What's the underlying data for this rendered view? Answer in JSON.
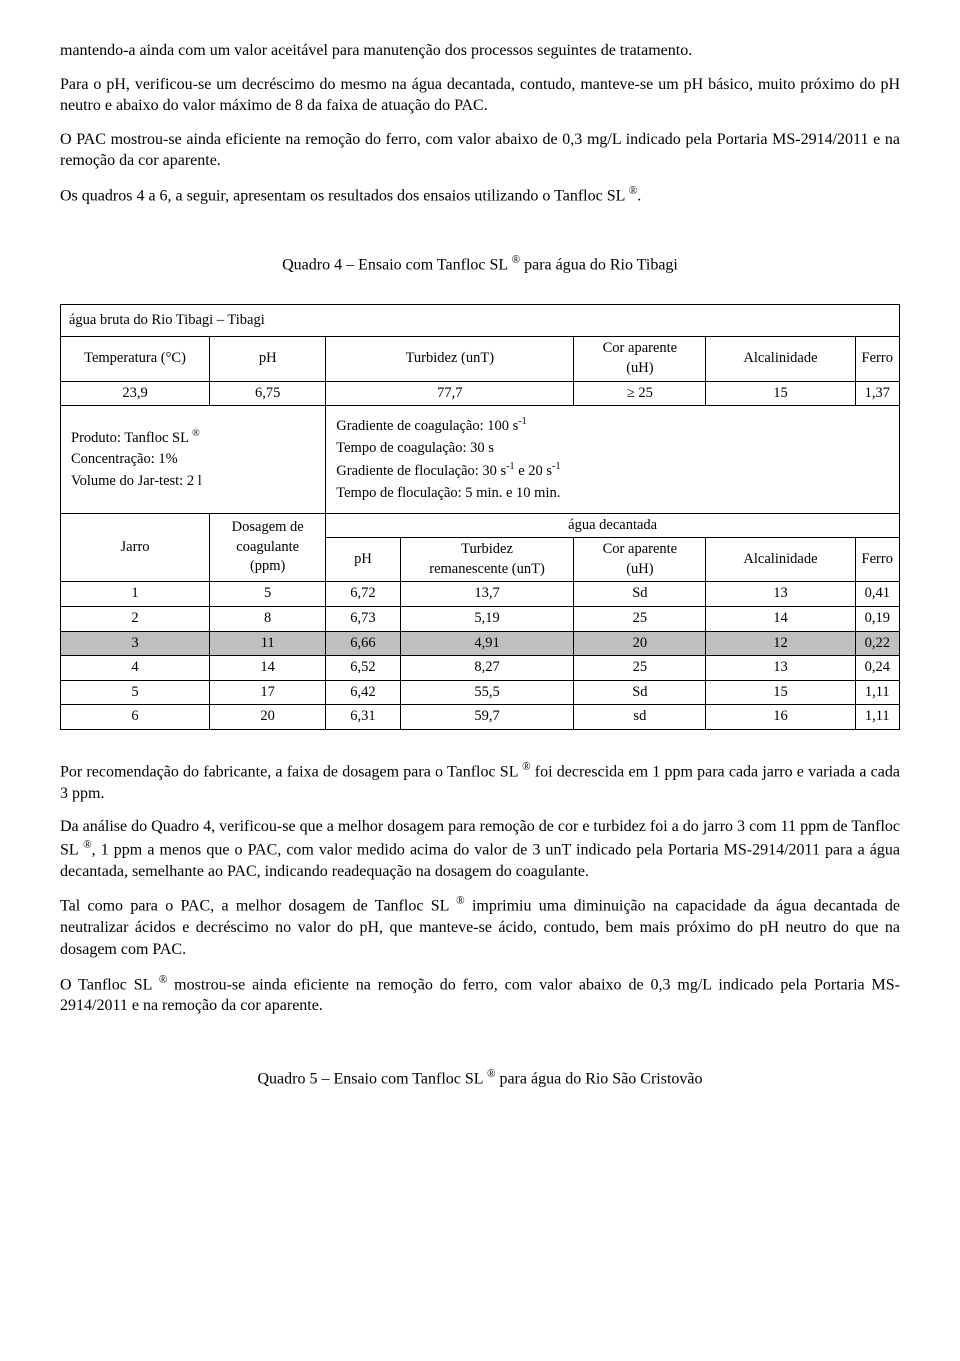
{
  "paragraphs": {
    "p1": "mantendo-a ainda com um valor aceitável para manutenção dos processos seguintes de tratamento.",
    "p2": "Para o pH, verificou-se um decréscimo do mesmo na água decantada, contudo, manteve-se um pH básico, muito próximo do pH neutro e abaixo do valor máximo de 8 da faixa de atuação do PAC.",
    "p3": "O PAC mostrou-se ainda eficiente na remoção do ferro, com valor abaixo de 0,3 mg/L indicado pela Portaria MS-2914/2011 e na remoção da cor aparente.",
    "p4a": "Os quadros 4 a 6, a seguir, apresentam os resultados dos ensaios utilizando o Tanfloc SL ",
    "p4b": ".",
    "caption1a": "Quadro 4 – Ensaio com Tanfloc SL ",
    "caption1b": " para água do Rio Tibagi",
    "p5a": "Por recomendação do fabricante, a faixa de dosagem para o Tanfloc SL ",
    "p5b": " foi decrescida em 1 ppm para cada jarro e variada a cada 3 ppm.",
    "p6a": "Da análise do Quadro 4, verificou-se que a melhor dosagem para remoção de cor e turbidez foi a do jarro 3 com 11 ppm de Tanfloc SL ",
    "p6b": ", 1 ppm a menos que o PAC, com valor medido acima do valor de 3 unT indicado pela Portaria MS-2914/2011 para a água decantada, semelhante ao PAC, indicando readequação na dosagem do coagulante.",
    "p7a": "Tal como para o PAC, a melhor dosagem de Tanfloc SL ",
    "p7b": " imprimiu uma diminuição na capacidade da água decantada de neutralizar ácidos e decréscimo no valor do pH, que manteve-se ácido, contudo, bem mais próximo do pH neutro do que na dosagem com PAC.",
    "p8a": "O Tanfloc SL ",
    "p8b": " mostrou-se ainda eficiente na remoção do ferro, com valor abaixo de 0,3 mg/L indicado pela Portaria MS-2914/2011 e na remoção da cor aparente.",
    "caption2a": "Quadro 5 – Ensaio com Tanfloc SL ",
    "caption2b": "  para água do Rio São Cristovão"
  },
  "table": {
    "title": "água bruta do Rio Tibagi – Tibagi",
    "head1": {
      "c1": "Temperatura (°C)",
      "c2": "pH",
      "c3": "Turbidez (unT)",
      "c4_l1": "Cor aparente",
      "c4_l2": "(uH)",
      "c5": "Alcalinidade",
      "c6": "Ferro"
    },
    "raw": {
      "c1": "23,9",
      "c2": "6,75",
      "c3": "77,7",
      "c4": "≥ 25",
      "c5": "15",
      "c6": "1,37"
    },
    "prod": {
      "l1a": "Produto: Tanfloc SL ",
      "l2": "Concentração: 1%",
      "l3": "Volume do Jar-test: 2 l",
      "r1a": "Gradiente de coagulação: 100 s",
      "r1sup": "-1",
      "r2": "Tempo de coagulação: 30 s",
      "r3a": "Gradiente de floculação: 30 s",
      "r3sup1": "-1",
      "r3b": " e 20 s",
      "r3sup2": "-1",
      "r4": "Tempo de floculação: 5 min. e 10 min."
    },
    "head2": {
      "jarro": "Jarro",
      "dosagem_l1": "Dosagem de",
      "dosagem_l2": "coagulante",
      "dosagem_l3": "(ppm)",
      "agua": "água decantada",
      "ph": "pH",
      "turb_l1": "Turbidez",
      "turb_l2": "remanescente (unT)",
      "cor_l1": "Cor aparente",
      "cor_l2": "(uH)",
      "alc": "Alcalinidade",
      "ferro": "Ferro"
    },
    "rows": [
      {
        "j": "1",
        "d": "5",
        "ph": "6,72",
        "t": "13,7",
        "c": "Sd",
        "a": "13",
        "f": "0,41",
        "hl": false
      },
      {
        "j": "2",
        "d": "8",
        "ph": "6,73",
        "t": "5,19",
        "c": "25",
        "a": "14",
        "f": "0,19",
        "hl": false
      },
      {
        "j": "3",
        "d": "11",
        "ph": "6,66",
        "t": "4,91",
        "c": "20",
        "a": "12",
        "f": "0,22",
        "hl": true
      },
      {
        "j": "4",
        "d": "14",
        "ph": "6,52",
        "t": "8,27",
        "c": "25",
        "a": "13",
        "f": "0,24",
        "hl": false
      },
      {
        "j": "5",
        "d": "17",
        "ph": "6,42",
        "t": "55,5",
        "c": "Sd",
        "a": "15",
        "f": "1,11",
        "hl": false
      },
      {
        "j": "6",
        "d": "20",
        "ph": "6,31",
        "t": "59,7",
        "c": "sd",
        "a": "16",
        "f": "1,11",
        "hl": false
      }
    ],
    "highlight_color": "#bfbfbf"
  },
  "reg": "®"
}
